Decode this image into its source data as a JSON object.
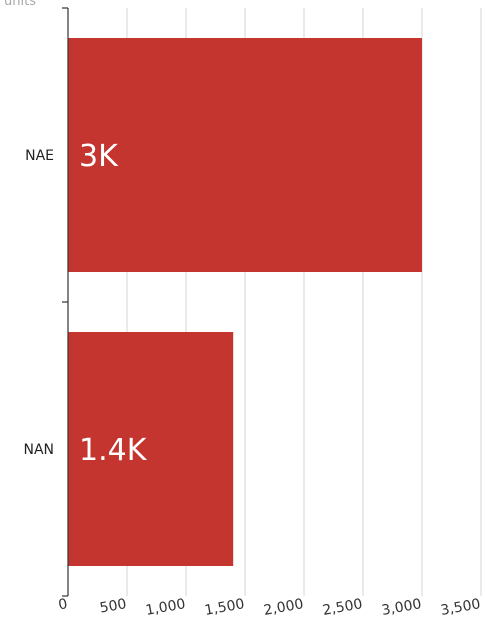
{
  "chart_data": {
    "type": "bar",
    "orientation": "horizontal",
    "categories": [
      "NAE",
      "NAN"
    ],
    "values": [
      3000,
      1400
    ],
    "value_labels": [
      "3K",
      "1.4K"
    ],
    "bar_color": "#c43530",
    "xlim": [
      0,
      3500
    ],
    "x_ticks": [
      0,
      500,
      1000,
      1500,
      2000,
      2500,
      3000,
      3500
    ],
    "x_tick_labels": [
      "0",
      "500",
      "1,000",
      "1,500",
      "2,000",
      "2,500",
      "3,000",
      "3,500"
    ],
    "y_unit_label": "units",
    "grid": "vertical",
    "gridline_color": "#d4d4d4",
    "axis_color": "#333333"
  }
}
